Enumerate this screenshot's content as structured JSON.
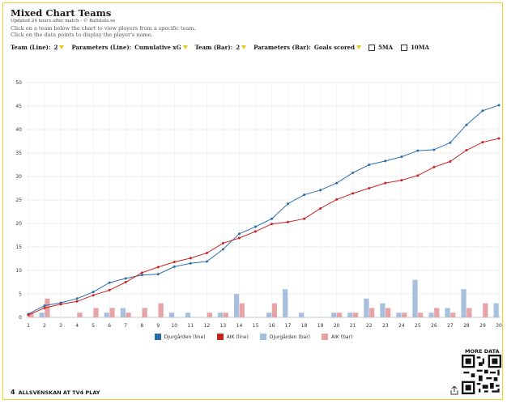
{
  "header": {
    "title": "Mixed Chart Teams",
    "subtitle": "Updated 24 hours after match - © Ballstats.se",
    "help_line1": "Click on a team below the chart to view players from a specific team.",
    "help_line2": "Click on the data points to display the player's name."
  },
  "controls": {
    "team_line_label": "Team (Line):",
    "team_line_value": "2",
    "param_line_label": "Parameters (Line):",
    "param_line_value": "Cumulative xG",
    "team_bar_label": "Team (Bar):",
    "team_bar_value": "2",
    "param_bar_label": "Parameters (Bar):",
    "param_bar_value": "Goals scored",
    "ma5_label": "5MA",
    "ma10_label": "10MA"
  },
  "footer": {
    "more_data": "MORE DATA",
    "brand": "ALLSVENSKAN AT TV4 PLAY"
  },
  "colors": {
    "djurgarden_line": "#2a6ead",
    "aik_line": "#cc2222",
    "djurgarden_bar": "#a8c0e0",
    "aik_bar": "#e8a4a4",
    "accent": "#f0d21a"
  },
  "chart_data": {
    "type": "bar",
    "x": [
      1,
      2,
      3,
      4,
      5,
      6,
      7,
      8,
      9,
      10,
      11,
      12,
      13,
      14,
      15,
      16,
      17,
      18,
      19,
      20,
      21,
      22,
      23,
      24,
      25,
      26,
      27,
      28,
      29,
      30
    ],
    "ylim": [
      0,
      50
    ],
    "yticks": [
      0,
      5,
      10,
      15,
      20,
      25,
      30,
      35,
      40,
      45,
      50
    ],
    "grid": true,
    "legend_placement": "bottom",
    "series": [
      {
        "name": "Djurgården (line)",
        "kind": "line",
        "color": "#2a6ead",
        "values": [
          0.7,
          2.5,
          3.1,
          4.0,
          5.4,
          7.4,
          8.3,
          9.0,
          9.2,
          10.8,
          11.5,
          11.9,
          14.5,
          17.8,
          19.3,
          21.0,
          24.2,
          26.1,
          27.1,
          28.6,
          30.8,
          32.5,
          33.3,
          34.2,
          35.5,
          35.7,
          37.2,
          41.0,
          44.0,
          45.2
        ]
      },
      {
        "name": "AIK (line)",
        "kind": "line",
        "color": "#cc2222",
        "values": [
          0.5,
          2.0,
          2.8,
          3.4,
          4.7,
          5.8,
          7.5,
          9.5,
          10.7,
          11.8,
          12.6,
          13.7,
          15.8,
          16.9,
          18.3,
          19.9,
          20.3,
          21.0,
          23.2,
          25.1,
          26.4,
          27.5,
          28.6,
          29.2,
          30.2,
          32.0,
          33.2,
          35.6,
          37.3,
          38.1
        ]
      },
      {
        "name": "Djurgården (bar)",
        "kind": "bar",
        "color": "#a8c0e0",
        "values": [
          0,
          1,
          0,
          0,
          0,
          1,
          2,
          0,
          0,
          1,
          1,
          0,
          1,
          5,
          0,
          1,
          6,
          1,
          0,
          1,
          1,
          4,
          3,
          1,
          8,
          1,
          2,
          6,
          0,
          3
        ]
      },
      {
        "name": "AIK (bar)",
        "kind": "bar",
        "color": "#e8a4a4",
        "values": [
          1,
          4,
          0,
          1,
          2,
          2,
          1,
          2,
          3,
          0,
          0,
          1,
          1,
          3,
          0,
          3,
          0,
          0,
          0,
          1,
          1,
          2,
          2,
          1,
          1,
          2,
          1,
          2,
          3,
          0
        ]
      }
    ]
  }
}
